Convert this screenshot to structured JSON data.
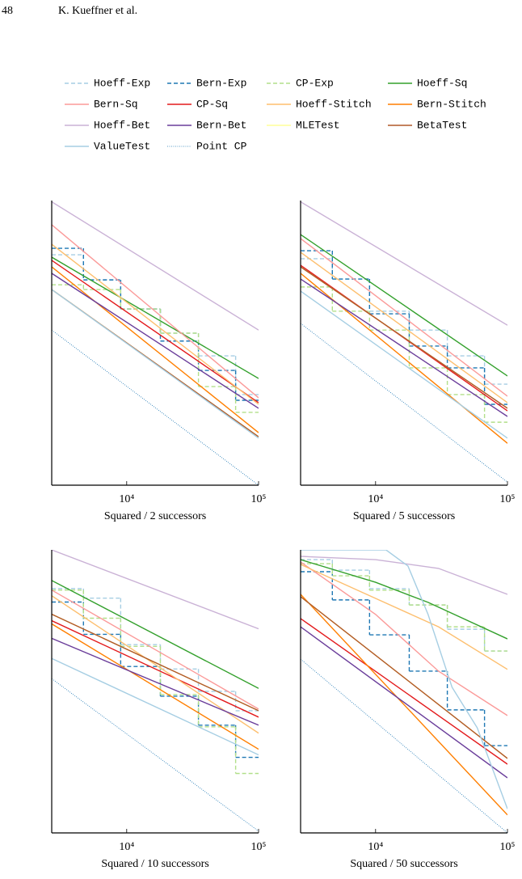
{
  "header": {
    "page": "48",
    "authors": "K. Kueffner et al."
  },
  "chart_data": [
    {
      "type": "line",
      "xlabel": "Squared / 2 successors",
      "xscale": "log",
      "yscale": "log",
      "xlim": [
        2700,
        100000
      ],
      "ylim": [
        0.001,
        0.1
      ],
      "xticks": [
        {
          "value": 10000,
          "label": "10⁴"
        },
        {
          "value": 100000,
          "label": "10⁵"
        }
      ],
      "series": [
        {
          "name": "Hoeff-Exp",
          "color": "#a6cee3",
          "dash": "dashed",
          "drawstyle": "steps",
          "x": [
            2700,
            4700,
            9000,
            18000,
            35000,
            67000
          ],
          "values": [
            0.0416,
            0.0277,
            0.0173,
            0.0117,
            0.0081,
            0.00433
          ]
        },
        {
          "name": "Bern-Exp",
          "color": "#1f78b4",
          "dash": "dashed",
          "drawstyle": "steps",
          "x": [
            2700,
            4700,
            9000,
            18000,
            35000,
            67000
          ],
          "values": [
            0.0462,
            0.0277,
            0.0173,
            0.0103,
            0.0064,
            0.00395
          ]
        },
        {
          "name": "CP-Exp",
          "color": "#b2df8a",
          "dash": "dashed",
          "drawstyle": "steps",
          "x": [
            2700,
            4700,
            9000,
            18000,
            35000,
            67000
          ],
          "values": [
            0.0256,
            0.0237,
            0.0173,
            0.0117,
            0.00493,
            0.00325
          ]
        },
        {
          "name": "Hoeff-Sq",
          "color": "#33a02c",
          "dash": "solid",
          "x": [
            2700,
            100000
          ],
          "values": [
            0.04,
            0.00562
          ]
        },
        {
          "name": "Bern-Sq",
          "color": "#fb9a99",
          "dash": "solid",
          "x": [
            2700,
            100000
          ],
          "values": [
            0.0676,
            0.00411
          ]
        },
        {
          "name": "CP-Sq",
          "color": "#e31a1c",
          "dash": "solid",
          "x": [
            2700,
            100000
          ],
          "values": [
            0.038,
            0.0038
          ]
        },
        {
          "name": "Hoeff-Stitch",
          "color": "#fdbf6f",
          "dash": "solid",
          "x": [
            2700,
            100000
          ],
          "values": [
            0.0493,
            0.0037
          ]
        },
        {
          "name": "Bern-Stitch",
          "color": "#ff7f00",
          "dash": "solid",
          "x": [
            2700,
            100000
          ],
          "values": [
            0.0342,
            0.00234
          ]
        },
        {
          "name": "Hoeff-Bet",
          "color": "#cab2d6",
          "dash": "solid",
          "x": [
            2700,
            100000
          ],
          "values": [
            0.098,
            0.0123
          ]
        },
        {
          "name": "Bern-Bet",
          "color": "#6a3d9a",
          "dash": "solid",
          "x": [
            2700,
            100000
          ],
          "values": [
            0.0308,
            0.00347
          ]
        },
        {
          "name": "MLETest",
          "color": "#ffff99",
          "dash": "solid",
          "x": [
            2700,
            100000
          ],
          "values": [
            0.0237,
            0.00219
          ]
        },
        {
          "name": "BetaTest",
          "color": "#b15928",
          "dash": "solid",
          "x": [
            2700,
            100000
          ],
          "values": [
            0.0237,
            0.00219
          ]
        },
        {
          "name": "ValueTest",
          "color": "#a6cee3",
          "dash": "solid",
          "x": [
            2700,
            100000
          ],
          "values": [
            0.0237,
            0.00214
          ]
        },
        {
          "name": "Point CP",
          "color": "#1f78b4",
          "dash": "dotted",
          "x": [
            2700,
            100000
          ],
          "values": [
            0.0123,
            0.001
          ]
        }
      ]
    },
    {
      "type": "line",
      "xlabel": "Squared / 5 successors",
      "xscale": "log",
      "yscale": "log",
      "xlim": [
        2700,
        100000
      ],
      "ylim": [
        0.001,
        0.1
      ],
      "xticks": [
        {
          "value": 10000,
          "label": "10⁴"
        },
        {
          "value": 100000,
          "label": "10⁵"
        }
      ],
      "series": [
        {
          "name": "Hoeff-Exp",
          "color": "#a6cee3",
          "dash": "dashed",
          "drawstyle": "steps",
          "x": [
            2700,
            4700,
            9000,
            18000,
            35000,
            67000
          ],
          "values": [
            0.039,
            0.0281,
            0.0167,
            0.0123,
            0.0081,
            0.00513
          ]
        },
        {
          "name": "Bern-Exp",
          "color": "#1f78b4",
          "dash": "dashed",
          "drawstyle": "steps",
          "x": [
            2700,
            4700,
            9000,
            18000,
            35000,
            67000
          ],
          "values": [
            0.0444,
            0.0281,
            0.016,
            0.0095,
            0.00667,
            0.0037
          ]
        },
        {
          "name": "CP-Exp",
          "color": "#b2df8a",
          "dash": "dashed",
          "drawstyle": "steps",
          "x": [
            2700,
            4700,
            9000,
            18000,
            35000,
            67000
          ],
          "values": [
            0.0247,
            0.0167,
            0.0123,
            0.00667,
            0.00433,
            0.00277
          ]
        },
        {
          "name": "Hoeff-Sq",
          "color": "#33a02c",
          "dash": "solid",
          "x": [
            2700,
            100000
          ],
          "values": [
            0.0577,
            0.00585
          ]
        },
        {
          "name": "Bern-Sq",
          "color": "#fb9a99",
          "dash": "solid",
          "x": [
            2700,
            100000
          ],
          "values": [
            0.0541,
            0.00422
          ]
        },
        {
          "name": "CP-Sq",
          "color": "#e31a1c",
          "dash": "solid",
          "x": [
            2700,
            100000
          ],
          "values": [
            0.0351,
            0.00333
          ]
        },
        {
          "name": "Hoeff-Stitch",
          "color": "#fdbf6f",
          "dash": "solid",
          "x": [
            2700,
            100000
          ],
          "values": [
            0.0433,
            0.0038
          ]
        },
        {
          "name": "Bern-Stitch",
          "color": "#ff7f00",
          "dash": "solid",
          "x": [
            2700,
            100000
          ],
          "values": [
            0.0308,
            0.00197
          ]
        },
        {
          "name": "Hoeff-Bet",
          "color": "#cab2d6",
          "dash": "solid",
          "x": [
            2700,
            100000
          ],
          "values": [
            0.098,
            0.0133
          ]
        },
        {
          "name": "Bern-Bet",
          "color": "#6a3d9a",
          "dash": "solid",
          "x": [
            2700,
            100000
          ],
          "values": [
            0.0281,
            0.00304
          ]
        },
        {
          "name": "MLETest",
          "color": "#ffff99",
          "dash": "solid",
          "x": [
            2700,
            100000
          ],
          "values": [
            0.0342,
            0.00347
          ]
        },
        {
          "name": "BetaTest",
          "color": "#b15928",
          "dash": "solid",
          "x": [
            2700,
            100000
          ],
          "values": [
            0.0342,
            0.00347
          ]
        },
        {
          "name": "ValueTest",
          "color": "#a6cee3",
          "dash": "solid",
          "x": [
            2700,
            100000
          ],
          "values": [
            0.0231,
            0.00214
          ]
        },
        {
          "name": "Point CP",
          "color": "#1f78b4",
          "dash": "dotted",
          "x": [
            2700,
            100000
          ],
          "values": [
            0.0137,
            0.00105
          ]
        }
      ]
    },
    {
      "type": "line",
      "xlabel": "Squared / 10 successors",
      "xscale": "log",
      "yscale": "log",
      "xlim": [
        2700,
        100000
      ],
      "ylim": [
        0.001,
        0.1
      ],
      "xticks": [
        {
          "value": 10000,
          "label": "10⁴"
        },
        {
          "value": 100000,
          "label": "10⁵"
        }
      ],
      "series": [
        {
          "name": "Hoeff-Exp",
          "color": "#a6cee3",
          "dash": "dashed",
          "drawstyle": "steps",
          "x": [
            2700,
            4700,
            9000,
            18000,
            35000,
            67000
          ],
          "values": [
            0.0533,
            0.0456,
            0.0214,
            0.0144,
            0.01,
            0.0073
          ]
        },
        {
          "name": "Bern-Exp",
          "color": "#1f78b4",
          "dash": "dashed",
          "drawstyle": "steps",
          "x": [
            2700,
            4700,
            9000,
            18000,
            35000,
            67000
          ],
          "values": [
            0.0428,
            0.0253,
            0.015,
            0.00925,
            0.00577,
            0.00342
          ]
        },
        {
          "name": "CP-Exp",
          "color": "#b2df8a",
          "dash": "dashed",
          "drawstyle": "steps",
          "x": [
            2700,
            4700,
            9000,
            18000,
            35000,
            67000
          ],
          "values": [
            0.052,
            0.0329,
            0.0208,
            0.0095,
            0.00562,
            0.00263
          ]
        },
        {
          "name": "Hoeff-Sq",
          "color": "#33a02c",
          "dash": "solid",
          "x": [
            2700,
            100000
          ],
          "values": [
            0.0608,
            0.0105
          ]
        },
        {
          "name": "Bern-Sq",
          "color": "#fb9a99",
          "dash": "solid",
          "x": [
            2700,
            100000
          ],
          "values": [
            0.052,
            0.0075
          ]
        },
        {
          "name": "CP-Sq",
          "color": "#e31a1c",
          "dash": "solid",
          "x": [
            2700,
            100000
          ],
          "values": [
            0.0316,
            0.00658
          ]
        },
        {
          "name": "Hoeff-Stitch",
          "color": "#fdbf6f",
          "dash": "solid",
          "x": [
            2700,
            100000
          ],
          "values": [
            0.0474,
            0.00507
          ]
        },
        {
          "name": "Bern-Stitch",
          "color": "#ff7f00",
          "dash": "solid",
          "x": [
            2700,
            100000
          ],
          "values": [
            0.03,
            0.0039
          ]
        },
        {
          "name": "Hoeff-Bet",
          "color": "#cab2d6",
          "dash": "solid",
          "x": [
            2700,
            100000
          ],
          "values": [
            0.1,
            0.0277
          ]
        },
        {
          "name": "Bern-Bet",
          "color": "#6a3d9a",
          "dash": "solid",
          "x": [
            2700,
            100000
          ],
          "values": [
            0.0237,
            0.00577
          ]
        },
        {
          "name": "MLETest",
          "color": "#ffff99",
          "dash": "solid",
          "x": [
            2700,
            100000
          ],
          "values": [
            0.0351,
            0.0073
          ]
        },
        {
          "name": "BetaTest",
          "color": "#b15928",
          "dash": "solid",
          "x": [
            2700,
            100000
          ],
          "values": [
            0.0351,
            0.0073
          ]
        },
        {
          "name": "ValueTest",
          "color": "#a6cee3",
          "dash": "solid",
          "x": [
            2700,
            100000
          ],
          "values": [
            0.0171,
            0.00356
          ]
        },
        {
          "name": "Point CP",
          "color": "#1f78b4",
          "dash": "dotted",
          "x": [
            2700,
            100000
          ],
          "values": [
            0.0123,
            0.00103
          ]
        }
      ]
    },
    {
      "type": "line",
      "xlabel": "Squared / 50 successors",
      "xscale": "log",
      "yscale": "log",
      "xlim": [
        2700,
        100000
      ],
      "ylim": [
        0.001,
        0.1
      ],
      "xticks": [
        {
          "value": 10000,
          "label": "10⁴"
        },
        {
          "value": 100000,
          "label": "10⁵"
        }
      ],
      "series": [
        {
          "name": "Hoeff-Exp",
          "color": "#a6cee3",
          "dash": "dashed",
          "drawstyle": "steps",
          "x": [
            2700,
            4700,
            9000,
            18000,
            35000,
            67000
          ],
          "values": [
            0.0853,
            0.0719,
            0.0532,
            0.0408,
            0.0275,
            0.0193
          ]
        },
        {
          "name": "Bern-Exp",
          "color": "#1f78b4",
          "dash": "dashed",
          "drawstyle": "steps",
          "x": [
            2700,
            4700,
            9000,
            18000,
            35000,
            67000
          ],
          "values": [
            0.0701,
            0.0443,
            0.0251,
            0.0139,
            0.0074,
            0.00414
          ]
        },
        {
          "name": "CP-Exp",
          "color": "#b2df8a",
          "dash": "dashed",
          "drawstyle": "steps",
          "x": [
            2700,
            4700,
            9000,
            18000,
            35000,
            67000
          ],
          "values": [
            0.0799,
            0.0656,
            0.0519,
            0.0408,
            0.0286,
            0.0193
          ]
        },
        {
          "name": "Hoeff-Sq",
          "color": "#33a02c",
          "dash": "solid",
          "x": [
            2700,
            10000,
            25000,
            100000
          ],
          "values": [
            0.0853,
            0.059,
            0.0426,
            0.0235
          ]
        },
        {
          "name": "Bern-Sq",
          "color": "#fb9a99",
          "dash": "solid",
          "x": [
            2700,
            10000,
            30000,
            100000
          ],
          "values": [
            0.0821,
            0.035,
            0.0139,
            0.00675
          ]
        },
        {
          "name": "CP-Sq",
          "color": "#e31a1c",
          "dash": "solid",
          "x": [
            2700,
            100000
          ],
          "values": [
            0.0327,
            0.00306
          ]
        },
        {
          "name": "Hoeff-Stitch",
          "color": "#fdbf6f",
          "dash": "solid",
          "x": [
            2700,
            10000,
            30000,
            100000
          ],
          "values": [
            0.0789,
            0.0454,
            0.0286,
            0.0143
          ]
        },
        {
          "name": "Bern-Stitch",
          "color": "#ff7f00",
          "dash": "solid",
          "x": [
            2700,
            100000
          ],
          "values": [
            0.0485,
            0.00134
          ]
        },
        {
          "name": "Hoeff-Bet",
          "color": "#cab2d6",
          "dash": "solid",
          "x": [
            2700,
            10000,
            30000,
            100000
          ],
          "values": [
            0.09,
            0.0853,
            0.074,
            0.0485
          ]
        },
        {
          "name": "Bern-Bet",
          "color": "#6a3d9a",
          "dash": "solid",
          "x": [
            2700,
            100000
          ],
          "values": [
            0.0286,
            0.00245
          ]
        },
        {
          "name": "MLETest",
          "color": "#ffff99",
          "dash": "solid",
          "x": [
            2700,
            100000
          ],
          "values": [
            0.0467,
            0.00336
          ]
        },
        {
          "name": "BetaTest",
          "color": "#b15928",
          "dash": "solid",
          "x": [
            2700,
            100000
          ],
          "values": [
            0.0467,
            0.00336
          ]
        },
        {
          "name": "ValueTest",
          "color": "#a6cee3",
          "dash": "solid",
          "x": [
            2700,
            12000,
            17600,
            25000,
            38000,
            59000,
            100000
          ],
          "values": [
            0.1,
            0.1,
            0.0769,
            0.035,
            0.0107,
            0.00553,
            0.00148
          ]
        },
        {
          "name": "Point CP",
          "color": "#1f78b4",
          "dash": "dotted",
          "x": [
            2700,
            100000
          ],
          "values": [
            0.0169,
            0.001
          ]
        }
      ]
    }
  ]
}
